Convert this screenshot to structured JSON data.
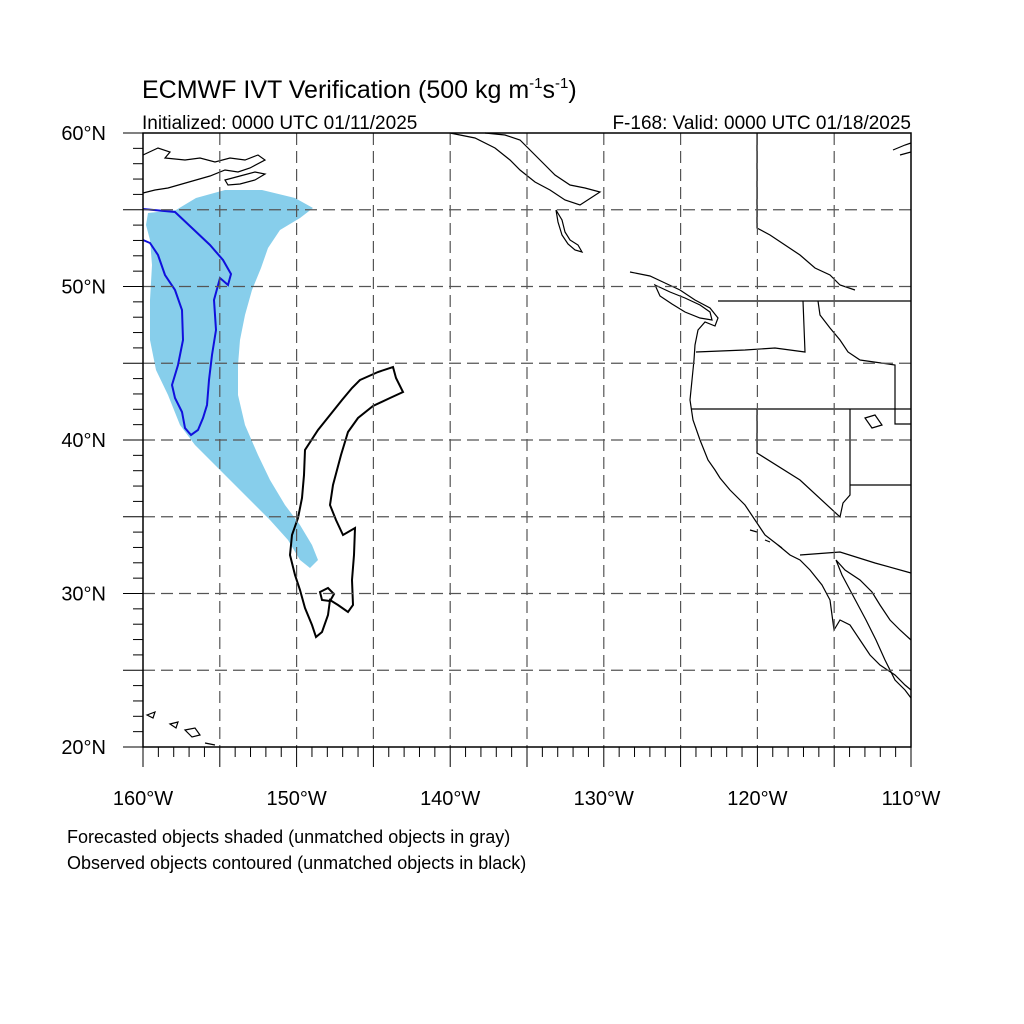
{
  "title": {
    "main": "ECMWF IVT Verification (500 kg m",
    "exp1": "-1",
    "mid": "s",
    "exp2": "-1",
    "close": ")"
  },
  "subtitle_left": "Initialized: 0000 UTC 01/11/2025",
  "subtitle_right": "F-168: Valid: 0000 UTC 01/18/2025",
  "map": {
    "lon_range": [
      -160,
      -110
    ],
    "lat_range": [
      20,
      60
    ],
    "grid_lons": [
      -155,
      -150,
      -145,
      -140,
      -135,
      -130,
      -125,
      -120,
      -115
    ],
    "grid_lats": [
      25,
      30,
      35,
      40,
      45,
      50,
      55
    ],
    "lon_labels": [
      {
        "lon": -160,
        "text": "160°W"
      },
      {
        "lon": -150,
        "text": "150°W"
      },
      {
        "lon": -140,
        "text": "140°W"
      },
      {
        "lon": -130,
        "text": "130°W"
      },
      {
        "lon": -120,
        "text": "120°W"
      },
      {
        "lon": -110,
        "text": "110°W"
      }
    ],
    "lat_labels": [
      {
        "lat": 60,
        "text": "60°N"
      },
      {
        "lat": 50,
        "text": "50°N"
      },
      {
        "lat": 40,
        "text": "40°N"
      },
      {
        "lat": 30,
        "text": "30°N"
      },
      {
        "lat": 20,
        "text": "20°N"
      }
    ],
    "colors": {
      "forecast_fill": "#87ceeb",
      "matched_contour": "#0000dd",
      "unmatched_contour": "#000000",
      "coast": "#000000",
      "grid": "#555555"
    }
  },
  "footnotes": [
    "Forecasted objects shaded (unmatched objects in gray)",
    "Observed objects contoured (unmatched objects in black)"
  ]
}
